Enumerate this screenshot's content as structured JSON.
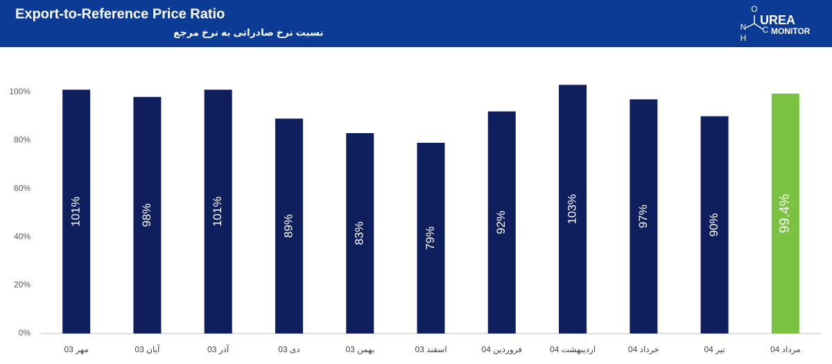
{
  "header": {
    "title": "Export-to-Reference Price Ratio",
    "subtitle": "نسبت نرخ صادراتی به نرخ مرجع",
    "logo": {
      "atoms": [
        "O",
        "N",
        "H",
        "C"
      ],
      "brand": "UREA",
      "tagline": "MONITOR"
    }
  },
  "chart_data": {
    "type": "bar",
    "categories": [
      "مهر 03",
      "آبان 03",
      "آذر 03",
      "دی 03",
      "بهمن 03",
      "اسفند 03",
      "فروردین 04",
      "اردیبهشت 04",
      "خرداد 04",
      "تیر 04",
      "مرداد 04"
    ],
    "values": [
      101,
      98,
      101,
      89,
      83,
      79,
      92,
      103,
      97,
      90,
      99.4
    ],
    "value_labels": [
      "101%",
      "98%",
      "101%",
      "89%",
      "83%",
      "79%",
      "92%",
      "103%",
      "97%",
      "90%",
      "99.4%"
    ],
    "colors": [
      "#0f1f5e",
      "#0f1f5e",
      "#0f1f5e",
      "#0f1f5e",
      "#0f1f5e",
      "#0f1f5e",
      "#0f1f5e",
      "#0f1f5e",
      "#0f1f5e",
      "#0f1f5e",
      "#7cc242"
    ],
    "ylim": [
      0,
      110
    ],
    "yticks": [
      {
        "value": 0,
        "label": "0%"
      },
      {
        "value": 20,
        "label": "20%"
      },
      {
        "value": 40,
        "label": "40%"
      },
      {
        "value": 60,
        "label": "60%"
      },
      {
        "value": 80,
        "label": "80%"
      },
      {
        "value": 100,
        "label": "100%"
      }
    ],
    "grid": false
  }
}
